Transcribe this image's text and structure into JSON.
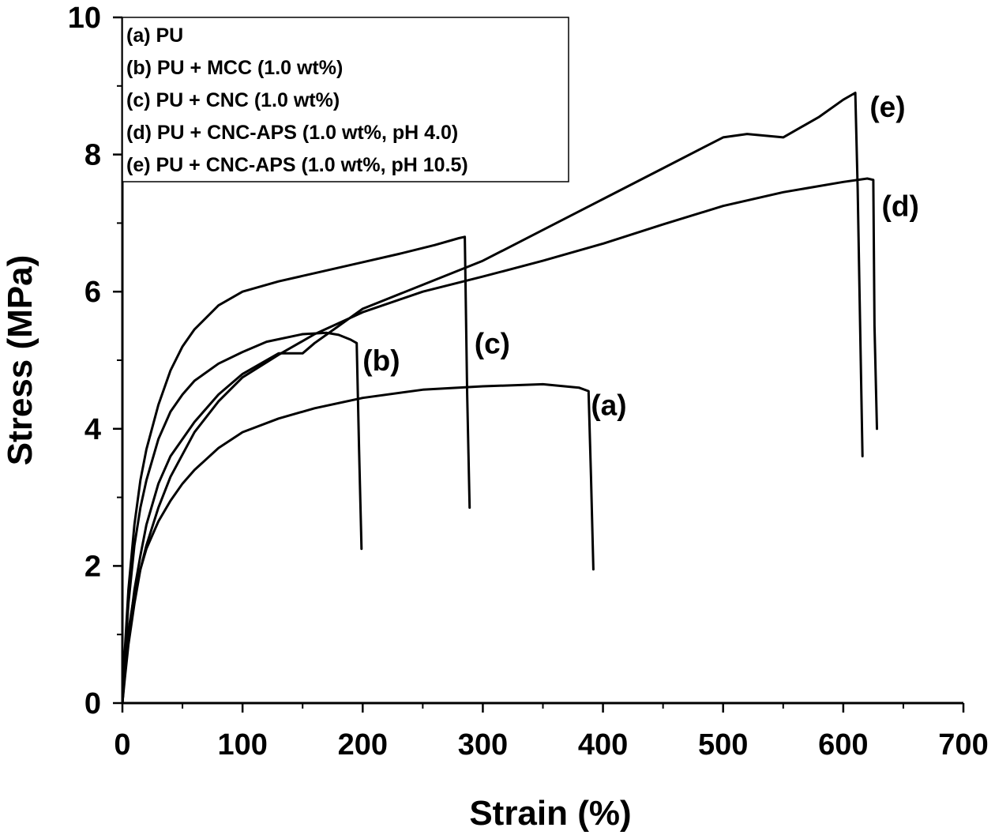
{
  "chart_data": {
    "type": "line",
    "title": "",
    "xlabel": "Strain (%)",
    "ylabel": "Stress (MPa)",
    "xlim": [
      0,
      700
    ],
    "ylim": [
      0,
      10
    ],
    "xticks": [
      0,
      100,
      200,
      300,
      400,
      500,
      600,
      700
    ],
    "yticks": [
      0,
      2,
      4,
      6,
      8,
      10
    ],
    "grid": false,
    "legend_position": "top-left",
    "legend": [
      "(a) PU",
      "(b) PU + MCC (1.0 wt%)",
      "(c) PU + CNC (1.0 wt%)",
      "(d) PU + CNC-APS (1.0 wt%, pH 4.0)",
      "(e) PU + CNC-APS (1.0 wt%, pH 10.5)"
    ],
    "series": [
      {
        "name": "(a)",
        "label": "(a)",
        "x": [
          0,
          2,
          5,
          10,
          15,
          20,
          30,
          40,
          50,
          60,
          80,
          100,
          130,
          160,
          200,
          250,
          300,
          350,
          380,
          388,
          390,
          392
        ],
        "y": [
          0,
          0.45,
          1.05,
          1.6,
          1.95,
          2.25,
          2.65,
          2.95,
          3.2,
          3.4,
          3.72,
          3.95,
          4.15,
          4.3,
          4.45,
          4.57,
          4.62,
          4.65,
          4.6,
          4.55,
          3.3,
          1.95
        ],
        "label_at": [
          390,
          4.2
        ]
      },
      {
        "name": "(b)",
        "label": "(b)",
        "x": [
          0,
          2,
          5,
          10,
          15,
          20,
          30,
          40,
          50,
          60,
          80,
          100,
          120,
          150,
          170,
          180,
          190,
          195,
          197,
          199
        ],
        "y": [
          0,
          0.65,
          1.45,
          2.3,
          2.85,
          3.25,
          3.85,
          4.25,
          4.5,
          4.7,
          4.95,
          5.12,
          5.27,
          5.38,
          5.4,
          5.37,
          5.3,
          5.25,
          3.7,
          2.25
        ],
        "label_at": [
          200,
          4.85
        ]
      },
      {
        "name": "(c)",
        "label": "(c)",
        "x": [
          0,
          2,
          5,
          10,
          15,
          20,
          30,
          40,
          50,
          60,
          80,
          100,
          130,
          160,
          200,
          230,
          260,
          280,
          285,
          287,
          289
        ],
        "y": [
          0,
          0.75,
          1.65,
          2.6,
          3.25,
          3.7,
          4.35,
          4.85,
          5.2,
          5.45,
          5.8,
          6.0,
          6.15,
          6.27,
          6.43,
          6.55,
          6.68,
          6.78,
          6.8,
          4.5,
          2.85
        ],
        "label_at": [
          293,
          5.1
        ]
      },
      {
        "name": "(d)",
        "label": "(d)",
        "x": [
          0,
          2,
          5,
          10,
          15,
          20,
          30,
          40,
          60,
          80,
          100,
          130,
          160,
          200,
          250,
          300,
          350,
          400,
          450,
          500,
          550,
          600,
          620,
          625,
          626,
          628
        ],
        "y": [
          0,
          0.35,
          0.85,
          1.45,
          1.95,
          2.3,
          2.85,
          3.3,
          3.95,
          4.4,
          4.75,
          5.08,
          5.38,
          5.7,
          6.0,
          6.22,
          6.45,
          6.7,
          6.98,
          7.25,
          7.45,
          7.6,
          7.65,
          7.63,
          5.5,
          4.0
        ],
        "label_at": [
          632,
          7.1
        ]
      },
      {
        "name": "(e)",
        "label": "(e)",
        "x": [
          0,
          2,
          5,
          10,
          15,
          20,
          30,
          40,
          60,
          80,
          100,
          130,
          150,
          160,
          180,
          200,
          250,
          300,
          350,
          400,
          450,
          500,
          520,
          550,
          580,
          600,
          610,
          612,
          614,
          616
        ],
        "y": [
          0,
          0.45,
          0.95,
          1.65,
          2.15,
          2.6,
          3.2,
          3.6,
          4.1,
          4.5,
          4.8,
          5.1,
          5.1,
          5.25,
          5.5,
          5.75,
          6.1,
          6.45,
          6.9,
          7.35,
          7.8,
          8.25,
          8.3,
          8.25,
          8.55,
          8.8,
          8.9,
          7.5,
          5.5,
          3.6
        ],
        "label_at": [
          622,
          8.55
        ]
      }
    ]
  }
}
